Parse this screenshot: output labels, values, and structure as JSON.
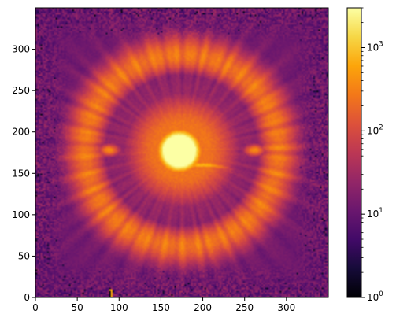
{
  "chart_data": {
    "type": "heatmap",
    "title": "",
    "xlabel": "",
    "ylabel": "",
    "xlim": [
      0,
      350
    ],
    "ylim": [
      0,
      350
    ],
    "x_ticks": [
      0,
      50,
      100,
      150,
      200,
      250,
      300
    ],
    "y_ticks": [
      0,
      50,
      100,
      150,
      200,
      250,
      300
    ],
    "colormap": "inferno",
    "colorbar": {
      "scale": "log",
      "range": [
        1,
        3000
      ],
      "ticks": [
        {
          "value": 1,
          "base": "10",
          "exp": "0"
        },
        {
          "value": 10,
          "base": "10",
          "exp": "1"
        },
        {
          "value": 100,
          "base": "10",
          "exp": "2"
        },
        {
          "value": 1000,
          "base": "10",
          "exp": "3"
        }
      ]
    },
    "features": {
      "background_level": 8,
      "core": {
        "x": 172,
        "y": 177,
        "peak": 3000
      },
      "inner_ring_dark": {
        "x": 172,
        "y": 175,
        "radius": 8
      },
      "arc": {
        "x": 200,
        "y": 160,
        "level": 800
      },
      "bright_ring": {
        "x": 175,
        "y": 178,
        "radius": 115,
        "level": 250
      },
      "dark_gap": {
        "x": 175,
        "y": 178,
        "radius": 80,
        "level": 40
      },
      "side_blobs": [
        {
          "x": 88,
          "y": 178,
          "level": 400
        },
        {
          "x": 262,
          "y": 178,
          "level": 400
        }
      ],
      "artifact": {
        "x": 90,
        "y": 5
      }
    }
  }
}
